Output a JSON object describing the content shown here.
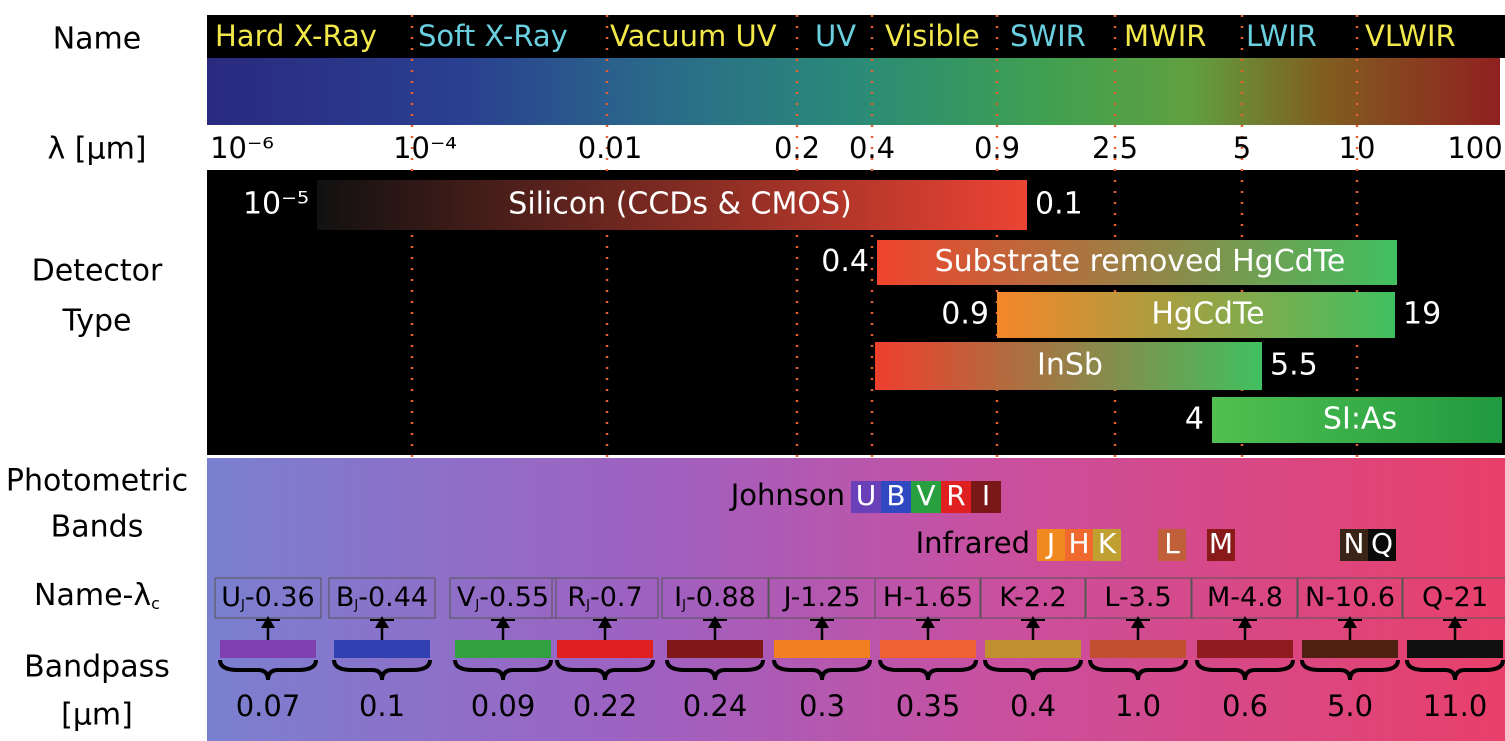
{
  "rows": {
    "name": "Name",
    "wavelength": "λ [μm]",
    "detector": [
      "Detector",
      "Type"
    ],
    "photometric": [
      "Photometric",
      "Bands"
    ],
    "name_lambda": {
      "text": "Name-λ",
      "sub": "c"
    },
    "bandpass": [
      "Bandpass",
      "[μm]"
    ]
  },
  "spectrum": [
    {
      "label": "Hard X-Ray",
      "color": "#f2e84a"
    },
    {
      "label": "Soft X-Ray",
      "color": "#6ad0e0"
    },
    {
      "label": "Vacuum UV",
      "color": "#f2e84a"
    },
    {
      "label": "UV",
      "color": "#6ad0e0"
    },
    {
      "label": "Visible",
      "color": "#f2e84a"
    },
    {
      "label": "SWIR",
      "color": "#6ad0e0"
    },
    {
      "label": "MWIR",
      "color": "#f2e84a"
    },
    {
      "label": "LWIR",
      "color": "#6ad0e0"
    },
    {
      "label": "VLWIR",
      "color": "#f2e84a"
    }
  ],
  "wavelength_ticks": [
    "10⁻⁶",
    "10⁻⁴",
    "0.01",
    "0.2",
    "0.4",
    "0.9",
    "2.5",
    "5",
    "10",
    "100"
  ],
  "detectors": [
    {
      "label": "Silicon (CCDs & CMOS)",
      "min": "10⁻⁵",
      "max": "0.1",
      "colors": [
        "#111111",
        "#ec4433"
      ]
    },
    {
      "label": "Substrate removed HgCdTe",
      "min": "0.4",
      "colors": [
        "#f0442c",
        "#40c060"
      ]
    },
    {
      "label": "HgCdTe",
      "min": "0.9",
      "max": "19",
      "colors": [
        "#f5862a",
        "#40c060"
      ]
    },
    {
      "label": "InSb",
      "max": "5.5",
      "colors": [
        "#ee3f2e",
        "#40c060"
      ]
    },
    {
      "label": "SI:As",
      "min": "4",
      "colors": [
        "#50c050",
        "#209a40"
      ]
    }
  ],
  "johnson": {
    "label": "Johnson",
    "bands": [
      {
        "letter": "U",
        "color": "#6a40b8"
      },
      {
        "letter": "B",
        "color": "#3048c0"
      },
      {
        "letter": "V",
        "color": "#28a040"
      },
      {
        "letter": "R",
        "color": "#e02020"
      },
      {
        "letter": "I",
        "color": "#7a1818"
      }
    ]
  },
  "infrared": {
    "label": "Infrared",
    "bands": [
      {
        "letter": "J",
        "color": "#f08a20"
      },
      {
        "letter": "H",
        "color": "#f06a30"
      },
      {
        "letter": "K",
        "color": "#c0a030"
      },
      {
        "letter": "L",
        "color": "#c0603a"
      },
      {
        "letter": "M",
        "color": "#8a1a1a"
      },
      {
        "letter": "N",
        "color": "#3a2418"
      },
      {
        "letter": "Q",
        "color": "#0a0a0a"
      }
    ]
  },
  "bands": [
    {
      "label": "U",
      "sub": "J",
      "rest": "-0.36",
      "width": "0.07",
      "color": "#8040b0"
    },
    {
      "label": "B",
      "sub": "J",
      "rest": "-0.44",
      "width": "0.1",
      "color": "#3040b0"
    },
    {
      "label": "V",
      "sub": "J",
      "rest": "-0.55",
      "width": "0.09",
      "color": "#30a040"
    },
    {
      "label": "R",
      "sub": "J",
      "rest": "-0.7",
      "width": "0.22",
      "color": "#e02020"
    },
    {
      "label": "I",
      "sub": "J",
      "rest": "-0.88",
      "width": "0.24",
      "color": "#801818"
    },
    {
      "label": "J-1.25",
      "width": "0.3",
      "color": "#f08020"
    },
    {
      "label": "H-1.65",
      "width": "0.35",
      "color": "#f06030"
    },
    {
      "label": "K-2.2",
      "width": "0.4",
      "color": "#c09030"
    },
    {
      "label": "L-3.5",
      "width": "1.0",
      "color": "#c05030"
    },
    {
      "label": "M-4.8",
      "width": "0.6",
      "color": "#901c20"
    },
    {
      "label": "N-10.6",
      "width": "5.0",
      "color": "#502010"
    },
    {
      "label": "Q-21",
      "width": "11.0",
      "color": "#101010"
    }
  ]
}
